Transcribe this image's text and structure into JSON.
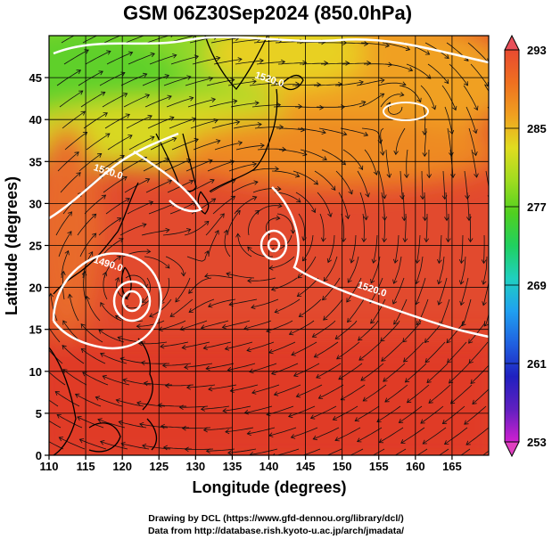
{
  "title": "GSM 06Z30Sep2024 (850.0hPa)",
  "xlabel": "Longitude (degrees)",
  "ylabel": "Latitude  (degrees)",
  "credits": [
    "Drawing by DCL (https://www.gfd-dennou.org/library/dcl/)",
    "Data from http://database.rish.kyoto-u.ac.jp/arch/jmadata/"
  ],
  "colorbar": {
    "min": 253,
    "max": 293,
    "ticks": [
      "293",
      "285",
      "277",
      "269",
      "261",
      "253"
    ],
    "colors": [
      "#d020d0",
      "#6020c0",
      "#2020c0",
      "#2060e0",
      "#20a0f0",
      "#20d0c0",
      "#20d060",
      "#50d020",
      "#a0dc20",
      "#e0dc20",
      "#f0a020",
      "#f07020",
      "#e84a30"
    ]
  },
  "chart_data": {
    "type": "heatmap",
    "variable": "temperature at 850 hPa with streamlines and geopotential height contours",
    "xlim": [
      110,
      170
    ],
    "ylim": [
      0,
      50
    ],
    "xticks": [
      110,
      115,
      120,
      125,
      130,
      135,
      140,
      145,
      150,
      155,
      160,
      165
    ],
    "yticks": [
      0,
      5,
      10,
      15,
      20,
      25,
      30,
      35,
      40,
      45
    ],
    "contour_labels": [
      {
        "text": "1520.0",
        "lon": 152,
        "lat": 20
      },
      {
        "text": "1520.0",
        "lon": 116,
        "lat": 34
      },
      {
        "text": "1490.0",
        "lon": 116,
        "lat": 23
      },
      {
        "text": "1520.0",
        "lon": 138,
        "lat": 45
      }
    ],
    "vortex_centers": [
      {
        "name": "typhoon",
        "lon": 121,
        "lat": 20
      },
      {
        "name": "typhoon",
        "lon": 141,
        "lat": 27
      },
      {
        "name": "low",
        "lon": 158,
        "lat": 42
      }
    ]
  }
}
